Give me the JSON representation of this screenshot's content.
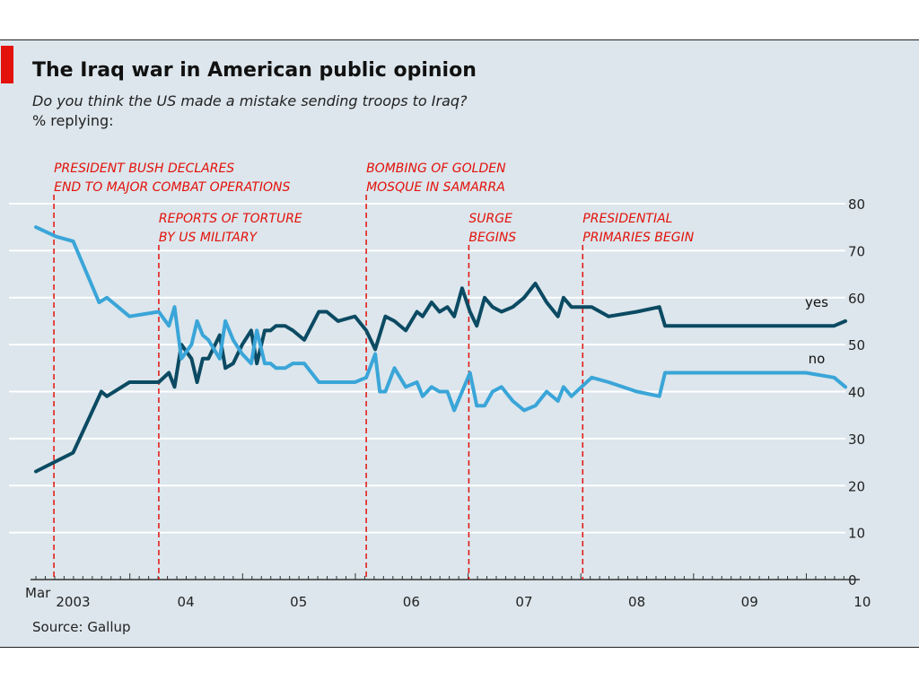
{
  "header": {
    "title": "The Iraq war in American public opinion",
    "subtitle": "Do you think the US made a mistake sending troops to Iraq?",
    "unit": "% replying:"
  },
  "footer": {
    "source": "Source: Gallup"
  },
  "colors": {
    "accent": "#e3120b",
    "background": "#dce6ec",
    "yes": "#0b4a62",
    "no": "#3aa5d8",
    "events": "#e3120b"
  },
  "chart_data": {
    "type": "line",
    "ylim": [
      0,
      80
    ],
    "yticks": [
      0,
      10,
      20,
      30,
      40,
      50,
      60,
      70,
      80
    ],
    "xlim": [
      2003.17,
      2010.35
    ],
    "xtick_labels": [
      {
        "label": "2003",
        "x": 2003.5
      },
      {
        "label": "04",
        "x": 2004.5
      },
      {
        "label": "05",
        "x": 2005.5
      },
      {
        "label": "06",
        "x": 2006.5
      },
      {
        "label": "07",
        "x": 2007.5
      },
      {
        "label": "08",
        "x": 2008.5
      },
      {
        "label": "09",
        "x": 2009.5
      },
      {
        "label": "10",
        "x": 2010.5
      }
    ],
    "x_start_label": "Mar",
    "grid": true,
    "events": [
      {
        "x": 2003.33,
        "lines": [
          "PRESIDENT BUSH DECLARES",
          "END TO MAJOR COMBAT OPERATIONS"
        ],
        "row": 1
      },
      {
        "x": 2004.26,
        "lines": [
          "REPORTS OF TORTURE",
          "BY US MILITARY"
        ],
        "row": 2
      },
      {
        "x": 2006.1,
        "lines": [
          "BOMBING OF GOLDEN",
          "MOSQUE IN SAMARRA"
        ],
        "row": 1
      },
      {
        "x": 2007.01,
        "lines": [
          "SURGE",
          "BEGINS"
        ],
        "row": 2
      },
      {
        "x": 2008.02,
        "lines": [
          "PRESIDENTIAL",
          "PRIMARIES BEGIN"
        ],
        "row": 2
      }
    ],
    "series": [
      {
        "name": "yes",
        "points": [
          [
            2003.17,
            23
          ],
          [
            2003.5,
            27
          ],
          [
            2003.75,
            40
          ],
          [
            2003.8,
            39
          ],
          [
            2004.0,
            42
          ],
          [
            2004.26,
            42
          ],
          [
            2004.35,
            44
          ],
          [
            2004.4,
            41
          ],
          [
            2004.46,
            50
          ],
          [
            2004.55,
            47
          ],
          [
            2004.6,
            42
          ],
          [
            2004.65,
            47
          ],
          [
            2004.7,
            47
          ],
          [
            2004.8,
            52
          ],
          [
            2004.85,
            45
          ],
          [
            2004.92,
            46
          ],
          [
            2005.0,
            50
          ],
          [
            2005.08,
            53
          ],
          [
            2005.13,
            46
          ],
          [
            2005.2,
            53
          ],
          [
            2005.25,
            53
          ],
          [
            2005.3,
            54
          ],
          [
            2005.38,
            54
          ],
          [
            2005.45,
            53
          ],
          [
            2005.55,
            51
          ],
          [
            2005.68,
            57
          ],
          [
            2005.75,
            57
          ],
          [
            2005.85,
            55
          ],
          [
            2006.0,
            56
          ],
          [
            2006.1,
            53
          ],
          [
            2006.18,
            49
          ],
          [
            2006.27,
            56
          ],
          [
            2006.35,
            55
          ],
          [
            2006.45,
            53
          ],
          [
            2006.55,
            57
          ],
          [
            2006.6,
            56
          ],
          [
            2006.68,
            59
          ],
          [
            2006.75,
            57
          ],
          [
            2006.82,
            58
          ],
          [
            2006.88,
            56
          ],
          [
            2006.95,
            62
          ],
          [
            2007.02,
            57
          ],
          [
            2007.08,
            54
          ],
          [
            2007.15,
            60
          ],
          [
            2007.22,
            58
          ],
          [
            2007.3,
            57
          ],
          [
            2007.4,
            58
          ],
          [
            2007.5,
            60
          ],
          [
            2007.6,
            63
          ],
          [
            2007.7,
            59
          ],
          [
            2007.8,
            56
          ],
          [
            2007.85,
            60
          ],
          [
            2007.92,
            58
          ],
          [
            2008.1,
            58
          ],
          [
            2008.25,
            56
          ],
          [
            2008.5,
            57
          ],
          [
            2008.7,
            58
          ],
          [
            2008.75,
            54
          ],
          [
            2009.0,
            54
          ],
          [
            2009.25,
            54
          ],
          [
            2009.5,
            54
          ],
          [
            2009.75,
            54
          ],
          [
            2010.0,
            54
          ],
          [
            2010.25,
            54
          ],
          [
            2010.35,
            55
          ]
        ]
      },
      {
        "name": "no",
        "points": [
          [
            2003.17,
            75
          ],
          [
            2003.35,
            73
          ],
          [
            2003.5,
            72
          ],
          [
            2003.73,
            59
          ],
          [
            2003.8,
            60
          ],
          [
            2004.0,
            56
          ],
          [
            2004.26,
            57
          ],
          [
            2004.35,
            54
          ],
          [
            2004.4,
            58
          ],
          [
            2004.46,
            47
          ],
          [
            2004.55,
            50
          ],
          [
            2004.6,
            55
          ],
          [
            2004.65,
            52
          ],
          [
            2004.7,
            51
          ],
          [
            2004.8,
            47
          ],
          [
            2004.85,
            55
          ],
          [
            2004.92,
            51
          ],
          [
            2005.0,
            48
          ],
          [
            2005.08,
            46
          ],
          [
            2005.13,
            53
          ],
          [
            2005.2,
            46
          ],
          [
            2005.25,
            46
          ],
          [
            2005.3,
            45
          ],
          [
            2005.38,
            45
          ],
          [
            2005.45,
            46
          ],
          [
            2005.55,
            46
          ],
          [
            2005.68,
            42
          ],
          [
            2005.75,
            42
          ],
          [
            2005.85,
            42
          ],
          [
            2006.0,
            42
          ],
          [
            2006.1,
            43
          ],
          [
            2006.18,
            48
          ],
          [
            2006.22,
            40
          ],
          [
            2006.27,
            40
          ],
          [
            2006.35,
            45
          ],
          [
            2006.45,
            41
          ],
          [
            2006.55,
            42
          ],
          [
            2006.6,
            39
          ],
          [
            2006.68,
            41
          ],
          [
            2006.75,
            40
          ],
          [
            2006.82,
            40
          ],
          [
            2006.88,
            36
          ],
          [
            2006.95,
            40
          ],
          [
            2007.02,
            44
          ],
          [
            2007.08,
            37
          ],
          [
            2007.15,
            37
          ],
          [
            2007.22,
            40
          ],
          [
            2007.3,
            41
          ],
          [
            2007.4,
            38
          ],
          [
            2007.5,
            36
          ],
          [
            2007.6,
            37
          ],
          [
            2007.7,
            40
          ],
          [
            2007.8,
            38
          ],
          [
            2007.85,
            41
          ],
          [
            2007.92,
            39
          ],
          [
            2008.1,
            43
          ],
          [
            2008.25,
            42
          ],
          [
            2008.5,
            40
          ],
          [
            2008.7,
            39
          ],
          [
            2008.75,
            44
          ],
          [
            2009.0,
            44
          ],
          [
            2009.25,
            44
          ],
          [
            2009.5,
            44
          ],
          [
            2009.75,
            44
          ],
          [
            2010.0,
            44
          ],
          [
            2010.25,
            43
          ],
          [
            2010.35,
            41
          ]
        ]
      }
    ]
  }
}
